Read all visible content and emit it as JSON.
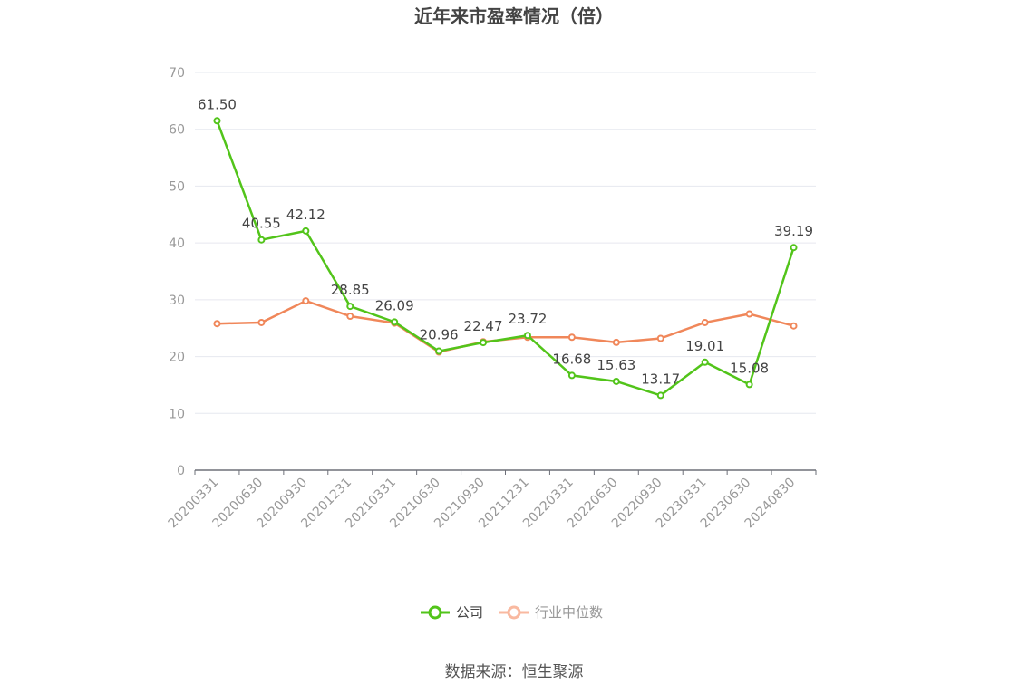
{
  "chart_data": {
    "type": "line",
    "title": "近年来市盈率情况（倍）",
    "x": [
      "20200331",
      "20200630",
      "20200930",
      "20201231",
      "20210331",
      "20210630",
      "20210930",
      "20211231",
      "20220331",
      "20220630",
      "20220930",
      "20230331",
      "20230630",
      "20240830"
    ],
    "series": [
      {
        "name": "公司",
        "color": "#52c41a",
        "values": [
          61.5,
          40.55,
          42.12,
          28.85,
          26.09,
          20.96,
          22.47,
          23.72,
          16.68,
          15.63,
          13.17,
          19.01,
          15.08,
          39.19
        ],
        "labels": [
          "61.50",
          "40.55",
          "42.12",
          "28.85",
          "26.09",
          "20.96",
          "22.47",
          "23.72",
          "16.68",
          "15.63",
          "13.17",
          "19.01",
          "15.08",
          "39.19"
        ]
      },
      {
        "name": "行业中位数",
        "color": "#f0875a",
        "values": [
          25.8,
          26.0,
          29.8,
          27.1,
          25.9,
          20.8,
          22.6,
          23.4,
          23.4,
          22.5,
          23.2,
          26.0,
          27.5,
          25.4
        ]
      }
    ],
    "ylim": [
      0,
      70
    ],
    "yticks": [
      "0",
      "10",
      "20",
      "30",
      "40",
      "50",
      "60",
      "70"
    ],
    "grid": true,
    "legend_position": "bottom-center",
    "legend_inactive_color": "#f9b9a0"
  },
  "source": "数据来源：恒生聚源"
}
